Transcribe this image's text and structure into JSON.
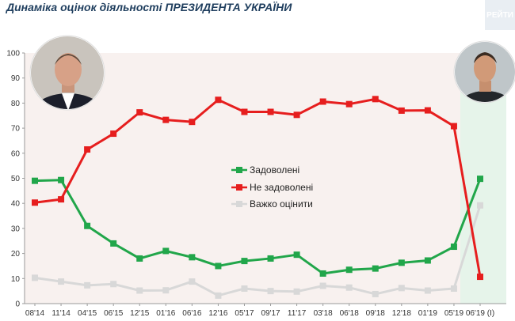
{
  "header": {
    "title": "Динаміка оцінок діяльності ПРЕЗИДЕНТА УКРАЇНИ",
    "brand": "РЕЙТИ"
  },
  "photos": {
    "left": "portrait-photo-left",
    "right": "portrait-photo-right"
  },
  "colors": {
    "satisfied": "#21a64a",
    "unsatisfied": "#e61e1e",
    "hard": "#d8d8d8",
    "plot_bg": "#f8f1ef",
    "highlight_bg": "#e6f4ea"
  },
  "chart_data": {
    "type": "line",
    "title": "Динаміка оцінок діяльності ПРЕЗИДЕНТА УКРАЇНИ",
    "xlabel": "",
    "ylabel": "",
    "ylim": [
      0,
      100
    ],
    "yticks": [
      0,
      10,
      20,
      30,
      40,
      50,
      60,
      70,
      80,
      90,
      100
    ],
    "grid": false,
    "legend_position": "center",
    "categories": [
      "08'14",
      "11'14",
      "04'15",
      "06'15",
      "12'15",
      "01'16",
      "06'16",
      "12'16",
      "05'17",
      "09'17",
      "11'17",
      "03'18",
      "06'18",
      "09'18",
      "12'18",
      "01'19",
      "05'19",
      "06'19 (I)"
    ],
    "series": [
      {
        "name": "Задоволені",
        "color": "#21a64a",
        "values": [
          49,
          49.3,
          31,
          24,
          18,
          21,
          18.5,
          15,
          17,
          18,
          19.5,
          12,
          13.5,
          14,
          16.3,
          17.2,
          22.7,
          49.8
        ]
      },
      {
        "name": "Не задоволені",
        "color": "#e61e1e",
        "values": [
          40.3,
          41.6,
          61.5,
          67.8,
          76.3,
          73.3,
          72.5,
          81.3,
          76.5,
          76.5,
          75.3,
          80.6,
          79.6,
          81.6,
          77,
          77.1,
          70.8,
          10.7
        ]
      },
      {
        "name": "Важко оцінити",
        "color": "#d8d8d8",
        "values": [
          10.3,
          8.8,
          7.3,
          7.8,
          5.2,
          5.3,
          8.8,
          3.2,
          6,
          5,
          4.8,
          7.1,
          6.4,
          3.8,
          6.2,
          5.2,
          6,
          39.2
        ]
      }
    ]
  }
}
